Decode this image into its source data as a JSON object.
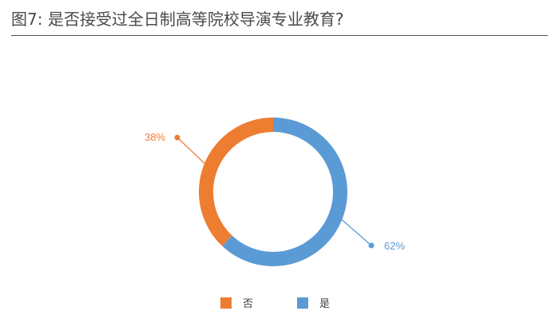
{
  "header": {
    "title": "图7: 是否接受过全日制高等院校导演专业教育?"
  },
  "chart_data": {
    "type": "pie",
    "variant": "donut",
    "title": "图7: 是否接受过全日制高等院校导演专业教育?",
    "slices": [
      {
        "name": "是",
        "value": 62,
        "label": "62%",
        "color": "#5b9bd5"
      },
      {
        "name": "否",
        "value": 38,
        "label": "38%",
        "color": "#ed7d31"
      }
    ],
    "legend": {
      "placement": "bottom",
      "entries": [
        "否",
        "是"
      ]
    }
  }
}
